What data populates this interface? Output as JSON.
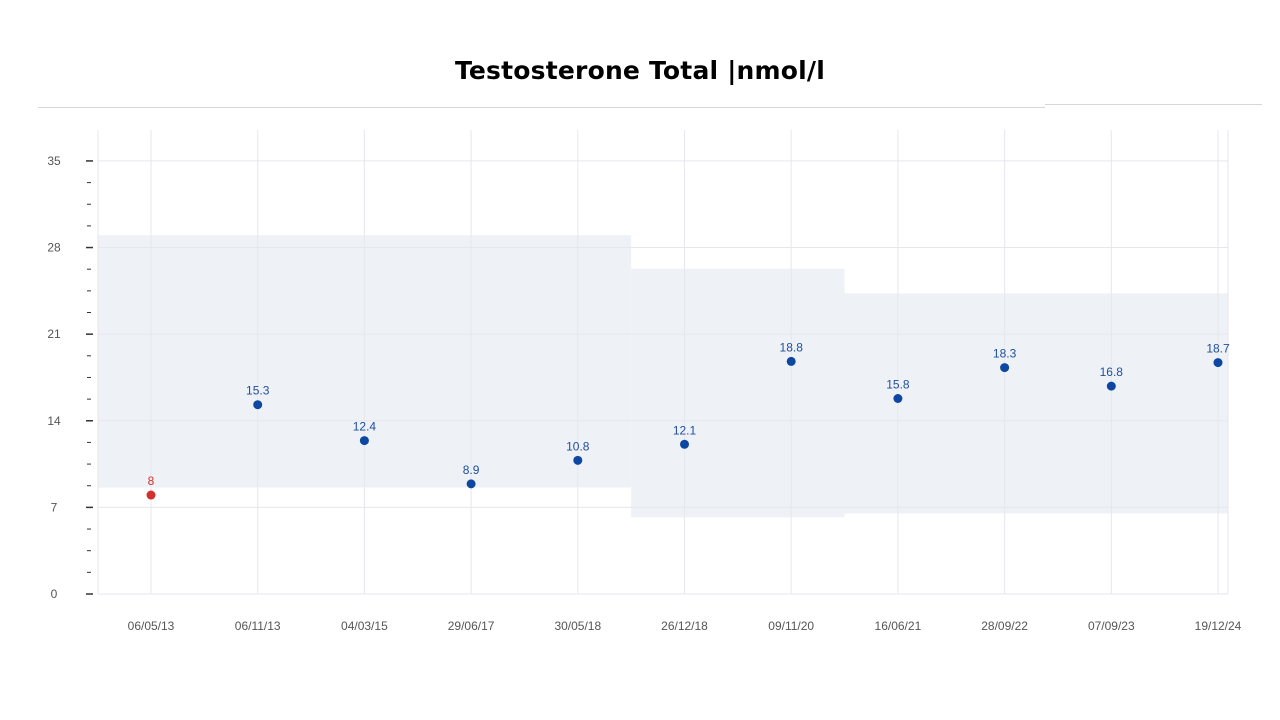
{
  "title": "Testosterone Total |nmol/l",
  "colors": {
    "point_normal": "#0d47a1",
    "point_low": "#d32f2f",
    "label_normal": "#1f4e9c",
    "label_low": "#d32f2f",
    "range_band": "#eef2f6",
    "grid": "#e6e6ef",
    "axis_tick": "#333333"
  },
  "chart_data": {
    "type": "scatter",
    "title": "Testosterone Total |nmol/l",
    "xlabel": "",
    "ylabel": "",
    "ylim": [
      0,
      37.5
    ],
    "y_ticks": [
      0,
      7,
      14,
      21,
      28,
      35
    ],
    "grid": true,
    "categories": [
      "06/05/13",
      "06/11/13",
      "04/03/15",
      "29/06/17",
      "30/05/18",
      "26/12/18",
      "09/11/20",
      "16/06/21",
      "28/09/22",
      "07/09/23",
      "19/12/24"
    ],
    "values": [
      8,
      15.3,
      12.4,
      8.9,
      10.8,
      12.1,
      18.8,
      15.8,
      18.3,
      16.8,
      18.7
    ],
    "labels": [
      "8",
      "15.3",
      "12.4",
      "8.9",
      "10.8",
      "12.1",
      "18.8",
      "15.8",
      "18.3",
      "16.8",
      "18.7"
    ],
    "out_of_range": [
      true,
      false,
      false,
      false,
      false,
      false,
      false,
      false,
      false,
      false,
      false
    ],
    "reference_ranges": [
      {
        "from": "06/05/13",
        "to": "30/05/18",
        "low": 8.6,
        "high": 29
      },
      {
        "from": "26/12/18",
        "to": "09/11/20",
        "low": 6.2,
        "high": 26.3
      },
      {
        "from": "16/06/21",
        "to": "19/12/24",
        "low": 6.5,
        "high": 24.3
      }
    ]
  }
}
